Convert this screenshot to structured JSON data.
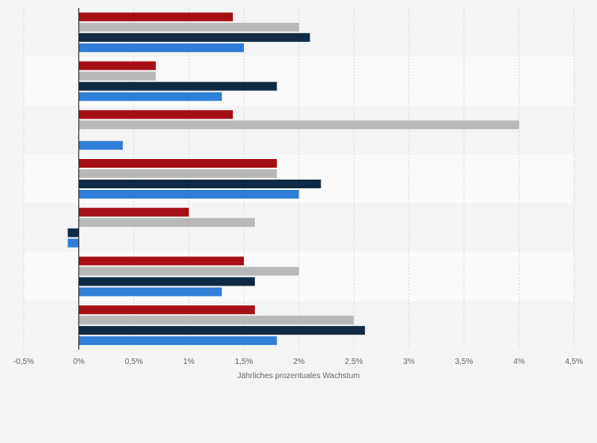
{
  "chart_data": {
    "type": "bar",
    "orientation": "horizontal",
    "title": "",
    "xlabel": "Jährliches prozentuales Wachstum",
    "ylabel": "",
    "xlim": [
      -0.5,
      4.5
    ],
    "x_ticks": [
      -0.5,
      0,
      0.5,
      1,
      1.5,
      2,
      2.5,
      3,
      3.5,
      4,
      4.5
    ],
    "x_tick_labels": [
      "-0,5%",
      "0%",
      "0,5%",
      "1%",
      "1,5%",
      "2%",
      "2,5%",
      "3%",
      "3,5%",
      "4%",
      "4,5%"
    ],
    "grid": true,
    "legend": "none",
    "categories": [
      "",
      "",
      "",
      "",
      "",
      "",
      ""
    ],
    "series": [
      {
        "color": "#a50f15",
        "values": [
          1.4,
          0.7,
          1.4,
          1.8,
          1.0,
          1.5,
          1.6
        ]
      },
      {
        "color": "#b8b8b8",
        "values": [
          2.0,
          0.7,
          4.0,
          1.8,
          1.6,
          2.0,
          2.5
        ]
      },
      {
        "color": "#0f2a44",
        "values": [
          2.1,
          1.8,
          null,
          2.2,
          -0.1,
          1.6,
          2.6
        ]
      },
      {
        "color": "#2f7ed8",
        "values": [
          1.5,
          1.3,
          0.4,
          2.0,
          -0.1,
          1.3,
          1.8
        ]
      }
    ]
  }
}
